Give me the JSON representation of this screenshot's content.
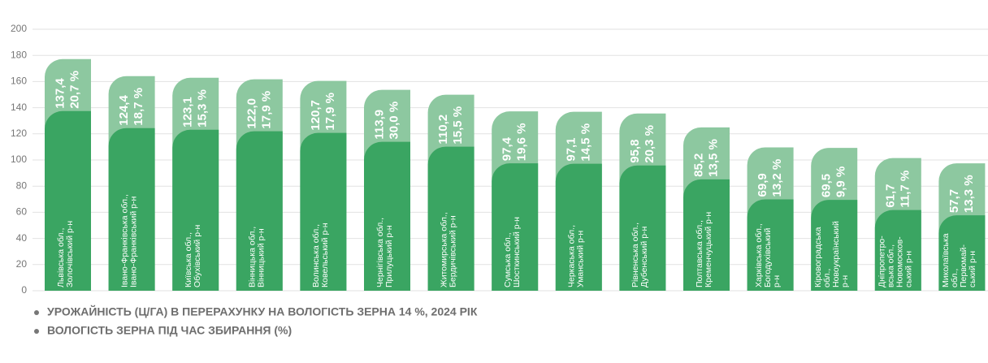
{
  "chart_data": {
    "type": "bar",
    "categories": [
      [
        "Львівська обл.,",
        "Золочівський р-н"
      ],
      [
        "Івано-Франківська обл.,",
        "Івано-Франківський р-н"
      ],
      [
        "Київська обл.,",
        "Обухівський р-н"
      ],
      [
        "Вінницька обл.,",
        "Вінницький р-н"
      ],
      [
        "Волинська обл.,",
        "Ковельський р-н"
      ],
      [
        "Чернігівська обл.,",
        "Прилуцький р-н"
      ],
      [
        "Житомирська обл.,",
        "Бердичівський р-н"
      ],
      [
        "Сумська обл.,",
        "Шосткинський р-н"
      ],
      [
        "Черкаська обл.,",
        "Уманський р-н"
      ],
      [
        "Рівненська обл.,",
        "Дубенський р-н"
      ],
      [
        "Полтавська обл.,",
        "Кременчуцький р-н"
      ],
      [
        "Харківська обл.,",
        "Богодухівський",
        "р-н"
      ],
      [
        "Кіровоградська",
        "обл.,",
        "Новоукраїнський",
        "р-н"
      ],
      [
        "Дніпропетро-",
        "вська обл.,",
        "Новомосков-",
        "ський р-н"
      ],
      [
        "Миколаївська",
        "обл.,",
        "Первомай-",
        "ський р-н"
      ]
    ],
    "series": [
      {
        "name": "УРОЖАЙНІСТЬ (Ц/ГА) В ПЕРЕРАХУНКУ НА ВОЛОГІСТЬ ЗЕРНА 14  %, 2024 РІК",
        "color": "#3aa562",
        "values": [
          137.4,
          124.4,
          123.1,
          122.0,
          120.7,
          113.9,
          110.2,
          97.4,
          97.1,
          95.8,
          85.2,
          69.9,
          69.5,
          61.7,
          57.7
        ],
        "value_labels": [
          "137,4",
          "124,4",
          "123,1",
          "122,0",
          "120,7",
          "113,9",
          "110,2",
          "97,4",
          "97,1",
          "95,8",
          "85,2",
          "69,9",
          "69,5",
          "61,7",
          "57,7"
        ]
      },
      {
        "name": "ВОЛОГІСТЬ ЗЕРНА ПІД ЧАС ЗБИРАННЯ (%)",
        "color": "#8dc8a0",
        "values": [
          20.7,
          18.7,
          15.3,
          17.9,
          17.9,
          30.0,
          15.5,
          19.6,
          14.5,
          20.3,
          13.5,
          13.2,
          9.9,
          11.7,
          13.3
        ],
        "value_labels": [
          "20,7 %",
          "18,7 %",
          "15,3 %",
          "17,9 %",
          "17,9 %",
          "30,0 %",
          "15,5 %",
          "19,6 %",
          "14,5 %",
          "20,3 %",
          "13,5 %",
          "13,2 %",
          "9,9 %",
          "11,7 %",
          "13,3 %"
        ]
      }
    ],
    "ylim": [
      0,
      200
    ],
    "yticks": [
      0,
      20,
      40,
      60,
      80,
      100,
      120,
      140,
      160,
      180,
      200
    ],
    "grid": true
  }
}
